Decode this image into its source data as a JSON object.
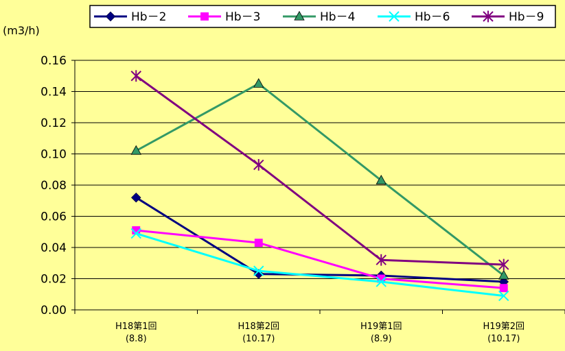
{
  "chart_data": {
    "type": "line",
    "ylabel": "(m3/h)",
    "categories": [
      {
        "line1": "H18第1回",
        "line2": "(8.8)"
      },
      {
        "line1": "H18第2回",
        "line2": "(10.17)"
      },
      {
        "line1": "H19第1回",
        "line2": "(8.9)"
      },
      {
        "line1": "H19第2回",
        "line2": "(10.17)"
      }
    ],
    "ylim": [
      0,
      0.16
    ],
    "yticks": [
      "0.00",
      "0.02",
      "0.04",
      "0.06",
      "0.08",
      "0.10",
      "0.12",
      "0.14",
      "0.16"
    ],
    "grid": "horizontal",
    "legend_position": "top",
    "series": [
      {
        "name": "Hb－2",
        "color": "#000080",
        "marker": "diamond",
        "values": [
          0.072,
          0.023,
          0.022,
          0.018
        ]
      },
      {
        "name": "Hb－3",
        "color": "#ff00ff",
        "marker": "square",
        "values": [
          0.051,
          0.043,
          0.02,
          0.014
        ]
      },
      {
        "name": "Hb－4",
        "color": "#339966",
        "marker": "triangle",
        "values": [
          0.102,
          0.145,
          0.083,
          0.022
        ]
      },
      {
        "name": "Hb－6",
        "color": "#00ffff",
        "marker": "x",
        "values": [
          0.049,
          0.025,
          0.018,
          0.009
        ]
      },
      {
        "name": "Hb－9",
        "color": "#800080",
        "marker": "asterisk",
        "values": [
          0.15,
          0.093,
          0.032,
          0.029
        ]
      }
    ]
  }
}
